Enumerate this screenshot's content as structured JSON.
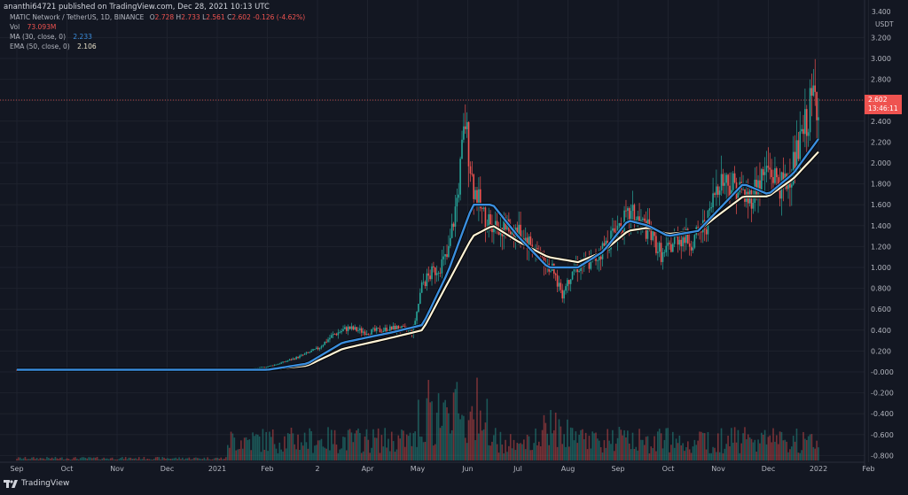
{
  "header": {
    "publisher_line": "ananthi64721 published on TradingView.com, Dec 28, 2021 10:13 UTC"
  },
  "legend": {
    "symbol": "MATIC Network / TetherUS, 1D, BINANCE",
    "ohlc": {
      "o_label": "O",
      "o": "2.728",
      "h_label": "H",
      "h": "2.733",
      "l_label": "L",
      "l": "2.561",
      "c_label": "C",
      "c": "2.602",
      "change": "-0.126 (-4.62%)"
    },
    "vol_label": "Vol",
    "vol_value": "73.093M",
    "ma_label": "MA (30, close, 0)",
    "ma_value": "2.233",
    "ema_label": "EMA (50, close, 0)",
    "ema_value": "2.106"
  },
  "price_axis": {
    "unit": "USDT",
    "top_cut": "3.400",
    "current_price": "2.602",
    "countdown": "13:46:11"
  },
  "footer": {
    "brand": "TradingView"
  },
  "colors": {
    "bg": "#131722",
    "up": "#26a69a",
    "down": "#ef5350",
    "ma": "#2962ff",
    "ma_line": "#3b8ede",
    "ema": "#fff3d6",
    "grid": "#1e222d"
  },
  "chart_data": {
    "type": "candlestick",
    "title": "MATIC Network / TetherUS, 1D, BINANCE",
    "ylim": [
      -0.8,
      3.4
    ],
    "y_ticks": [
      "3.200",
      "3.000",
      "2.800",
      "2.600",
      "2.400",
      "2.200",
      "2.000",
      "1.800",
      "1.600",
      "1.400",
      "1.200",
      "1.000",
      "0.800",
      "0.600",
      "0.400",
      "0.200",
      "-0.000",
      "-0.200",
      "-0.400",
      "-0.600",
      "-0.800"
    ],
    "y_tick_values": [
      3.2,
      3.0,
      2.8,
      2.6,
      2.4,
      2.2,
      2.0,
      1.8,
      1.6,
      1.4,
      1.2,
      1.0,
      0.8,
      0.6,
      0.4,
      0.2,
      0.0,
      -0.2,
      -0.4,
      -0.6,
      -0.8
    ],
    "x_ticks": [
      "Sep",
      "Oct",
      "Nov",
      "Dec",
      "2021",
      "Feb",
      "2",
      "Apr",
      "May",
      "Jun",
      "Jul",
      "Aug",
      "Sep",
      "Oct",
      "Nov",
      "Dec",
      "2022",
      "Feb"
    ],
    "x_tick_months": [
      0,
      1,
      2,
      3,
      4,
      5,
      6,
      7,
      8,
      9,
      10,
      11,
      12,
      13,
      14,
      15,
      16,
      17
    ],
    "close_path": [
      [
        0,
        0.02
      ],
      [
        1,
        0.02
      ],
      [
        2,
        0.02
      ],
      [
        3,
        0.02
      ],
      [
        4,
        0.02
      ],
      [
        4.5,
        0.02
      ],
      [
        5,
        0.05
      ],
      [
        5.3,
        0.09
      ],
      [
        5.6,
        0.14
      ],
      [
        6,
        0.22
      ],
      [
        6.3,
        0.35
      ],
      [
        6.6,
        0.42
      ],
      [
        7,
        0.38
      ],
      [
        7.3,
        0.4
      ],
      [
        7.6,
        0.42
      ],
      [
        7.9,
        0.38
      ],
      [
        8.1,
        0.85
      ],
      [
        8.3,
        0.95
      ],
      [
        8.6,
        1.1
      ],
      [
        8.8,
        1.7
      ],
      [
        8.95,
        2.4
      ],
      [
        9.1,
        1.8
      ],
      [
        9.3,
        1.5
      ],
      [
        9.6,
        1.4
      ],
      [
        10,
        1.35
      ],
      [
        10.3,
        1.2
      ],
      [
        10.6,
        1.05
      ],
      [
        10.9,
        0.75
      ],
      [
        11.1,
        1.0
      ],
      [
        11.5,
        1.05
      ],
      [
        11.8,
        1.25
      ],
      [
        12,
        1.4
      ],
      [
        12.3,
        1.5
      ],
      [
        12.6,
        1.35
      ],
      [
        12.9,
        1.1
      ],
      [
        13.2,
        1.3
      ],
      [
        13.5,
        1.25
      ],
      [
        13.8,
        1.45
      ],
      [
        14,
        1.85
      ],
      [
        14.3,
        1.8
      ],
      [
        14.6,
        1.65
      ],
      [
        15,
        1.95
      ],
      [
        15.3,
        1.75
      ],
      [
        15.6,
        2.1
      ],
      [
        15.9,
        2.65
      ],
      [
        16,
        2.6
      ]
    ],
    "ma_30_path": [
      [
        0,
        0.02
      ],
      [
        5,
        0.02
      ],
      [
        5.8,
        0.08
      ],
      [
        6.5,
        0.28
      ],
      [
        7.5,
        0.38
      ],
      [
        8.1,
        0.45
      ],
      [
        8.6,
        0.95
      ],
      [
        9.1,
        1.6
      ],
      [
        9.5,
        1.6
      ],
      [
        10,
        1.3
      ],
      [
        10.6,
        1.0
      ],
      [
        11.2,
        1.0
      ],
      [
        11.7,
        1.15
      ],
      [
        12.2,
        1.45
      ],
      [
        12.6,
        1.4
      ],
      [
        13,
        1.3
      ],
      [
        13.6,
        1.35
      ],
      [
        14,
        1.55
      ],
      [
        14.5,
        1.8
      ],
      [
        15,
        1.7
      ],
      [
        15.5,
        1.9
      ],
      [
        16,
        2.23
      ]
    ],
    "ema_50_path": [
      [
        0,
        0.02
      ],
      [
        5,
        0.02
      ],
      [
        5.8,
        0.06
      ],
      [
        6.5,
        0.22
      ],
      [
        7.5,
        0.33
      ],
      [
        8.1,
        0.4
      ],
      [
        8.6,
        0.85
      ],
      [
        9.1,
        1.3
      ],
      [
        9.5,
        1.4
      ],
      [
        10,
        1.25
      ],
      [
        10.6,
        1.1
      ],
      [
        11.2,
        1.05
      ],
      [
        11.7,
        1.15
      ],
      [
        12.2,
        1.35
      ],
      [
        12.6,
        1.38
      ],
      [
        13,
        1.32
      ],
      [
        13.6,
        1.35
      ],
      [
        14,
        1.5
      ],
      [
        14.5,
        1.68
      ],
      [
        15,
        1.68
      ],
      [
        15.5,
        1.85
      ],
      [
        16,
        2.106
      ]
    ]
  }
}
